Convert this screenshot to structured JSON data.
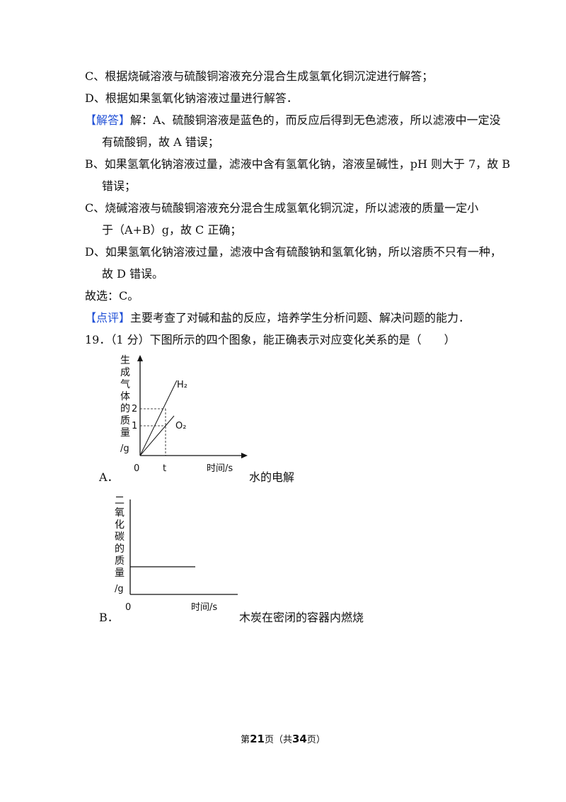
{
  "lines": [
    "C、根据烧碱溶液与硫酸铜溶液充分混合生成氢氧化铜沉淀进行解答；",
    "D、根据如果氢氧化钠溶液过量进行解答．",
    "解：A、硫酸铜溶液是蓝色的，而反应后得到无色滤液，所以滤液中一定没",
    "有硫酸铜，故 A 错误；",
    "B、如果氢氧化钠溶液过量，滤液中含有氢氧化钠，溶液呈碱性，pH 则大于 7，故 B",
    "错误；",
    "C、烧碱溶液与硫酸铜溶液充分混合生成氢氧化铜沉淀，所以滤液的质量一定小",
    "于（A+B）g，故 C 正确；",
    "D、如果氢氧化钠溶液过量，滤液中含有硫酸钠和氢氧化钠，所以溶质不只有一种，",
    "故 D 错误。",
    "故选：C。",
    "主要考查了对碱和盐的反应，培养学生分析问题、解决问题的能力．",
    "19．（1 分）下图所示的四个图象，能正确表示对应变化关系的是（　　）"
  ],
  "tags": {
    "answer": "【解答】",
    "comment": "【点评】"
  },
  "graph_a": {
    "option": "A．",
    "caption": "水的电解",
    "ylabel_chars": [
      "生",
      "成",
      "气",
      "体",
      "的",
      "质",
      "量"
    ],
    "yunit": "/g",
    "xlabel": "时间/s",
    "origin": "0",
    "t_label": "t",
    "y_ticks": [
      "2",
      "1"
    ],
    "series": [
      "H₂",
      "O₂"
    ]
  },
  "graph_b": {
    "option": "B．",
    "caption": "木炭在密闭的容器内燃烧",
    "ylabel_chars": [
      "二",
      "氧",
      "化",
      "碳",
      "的",
      "质",
      "量"
    ],
    "yunit": "/g",
    "xlabel": "时间/s",
    "origin": "0"
  },
  "footer": {
    "prefix": "第",
    "page": "21",
    "mid": "页（共",
    "total": "34",
    "suffix": "页）"
  }
}
